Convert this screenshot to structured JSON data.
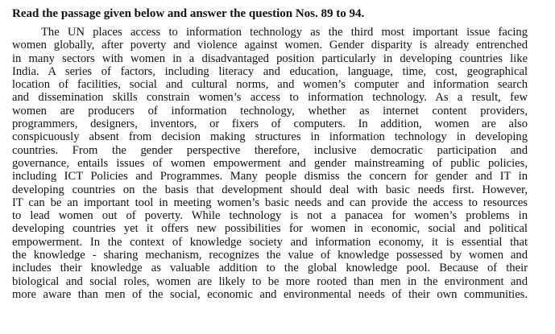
{
  "heading": "Read the passage given below and answer the question Nos. 89 to 94.",
  "passage_lines": [
    "The UN places access to information technology as the third most important issue facing",
    "women globally, after poverty and violence against women.  Gender disparity is already entrenched",
    "in many sectors with women in a disadvantaged position particularly in developing countries like",
    "India.  A series of factors, including literacy and education, language, time, cost, geographical",
    "location of facilities, social and cultural norms, and women’s computer and information search",
    "and dissemination skills constrain women’s access to information technology.  As a result, few",
    "women are producers of information technology, whether as internet content providers,",
    "programmers, designers, inventors, or fixers of computers.  In addition, women are also",
    "conspicuously absent from decision making structures in information technology in developing",
    "countries.  From the gender perspective therefore, inclusive democratic participation and",
    "governance, entails issues of women empowerment and gender mainstreaming of public policies,",
    "including ICT Policies and Programmes.  Many people dismiss the concern for gender and IT in",
    "developing countries on the basis that development should deal with basic needs first.  However,",
    "IT can be an important tool in meeting women’s basic needs and can provide the access to resources",
    "to lead women out of poverty.  While technology is not a panacea for women’s problems in",
    "developing countries yet it offers new possibilities for women in economic, social and political",
    "empowerment.  In the context of knowledge society and information economy, it is essential that",
    "the knowledge - sharing mechanism, recognizes the value of knowledge possessed by women and",
    "includes their knowledge as valuable addition to the global knowledge pool.  Because of their",
    "biological and social roles, women are likely to be more rooted than men in the environment and",
    "more aware than men of the social, economic and environmental needs of their own communities."
  ]
}
